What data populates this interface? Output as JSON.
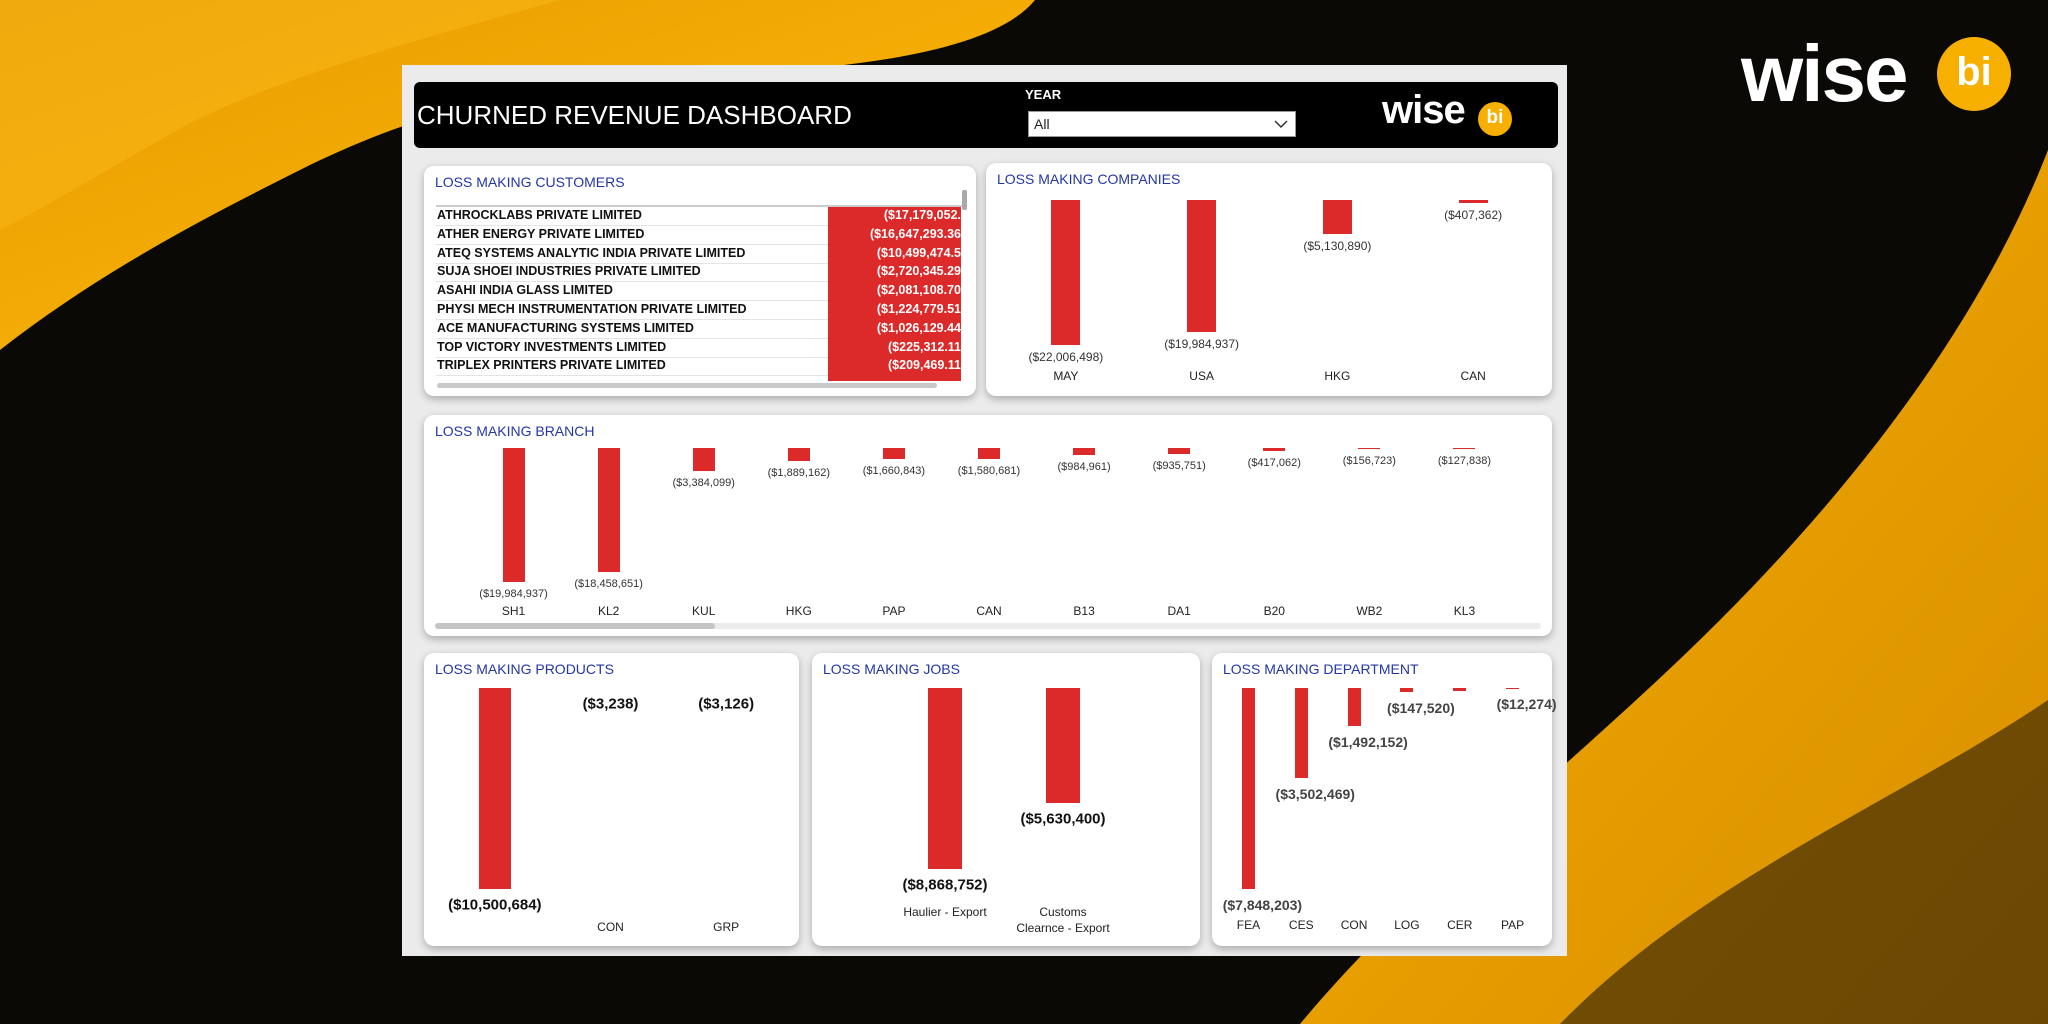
{
  "logo": {
    "brand": "wise",
    "badge": "bi"
  },
  "header": {
    "title": "CHURNED REVENUE DASHBOARD",
    "filter_label": "YEAR",
    "filter_value": "All"
  },
  "customers": {
    "title": "LOSS MAKING CUSTOMERS",
    "rows": [
      [
        "ATHROCKLABS PRIVATE LIMITED",
        "($17,179,052."
      ],
      [
        "ATHER ENERGY PRIVATE LIMITED",
        "($16,647,293.36"
      ],
      [
        "ATEQ SYSTEMS ANALYTIC INDIA PRIVATE LIMITED",
        "($10,499,474.5"
      ],
      [
        "SUJA SHOEI INDUSTRIES PRIVATE LIMITED",
        "($2,720,345.29"
      ],
      [
        "ASAHI INDIA GLASS LIMITED",
        "($2,081,108.70"
      ],
      [
        "PHYSI MECH INSTRUMENTATION PRIVATE LIMITED",
        "($1,224,779.51"
      ],
      [
        "ACE MANUFACTURING SYSTEMS LIMITED",
        "($1,026,129.44"
      ],
      [
        "TOP VICTORY INVESTMENTS LIMITED",
        "($225,312.11"
      ],
      [
        "TRIPLEX PRINTERS PRIVATE LIMITED",
        "($209,469.11"
      ]
    ]
  },
  "chart_data": [
    {
      "type": "bar",
      "title": "LOSS MAKING COMPANIES",
      "color": "#dc2a2a",
      "categories": [
        "MAY",
        "USA",
        "HKG",
        "CAN"
      ],
      "values": [
        -22006498,
        -19984937,
        -5130890,
        -407362
      ],
      "value_labels": [
        "($22,006,498)",
        "($19,984,937)",
        "($5,130,890)",
        "($407,362)"
      ],
      "ylim": [
        -24000000,
        0
      ]
    },
    {
      "type": "bar",
      "title": "LOSS MAKING BRANCH",
      "color": "#dc2a2a",
      "categories": [
        "SH1",
        "KL2",
        "KUL",
        "HKG",
        "PAP",
        "CAN",
        "B13",
        "DA1",
        "B20",
        "WB2",
        "KL3"
      ],
      "values": [
        -19984937,
        -18458651,
        -3384099,
        -1889162,
        -1660843,
        -1580681,
        -984961,
        -935751,
        -417062,
        -156723,
        -127838
      ],
      "value_labels": [
        "($19,984,937)",
        "($18,458,651)",
        "($3,384,099)",
        "($1,889,162)",
        "($1,660,843)",
        "($1,580,681)",
        "($984,961)",
        "($935,751)",
        "($417,062)",
        "($156,723)",
        "($127,838)"
      ],
      "ylim": [
        -21000000,
        0
      ]
    },
    {
      "type": "bar",
      "title": "LOSS MAKING PRODUCTS",
      "color": "#dc2a2a",
      "categories": [
        null,
        "CON",
        "GRP"
      ],
      "values": [
        -10500684,
        -3238,
        -3126
      ],
      "value_labels": [
        "($10,500,684)",
        "($3,238)",
        "($3,126)"
      ],
      "ylim": [
        -11000000,
        0
      ]
    },
    {
      "type": "bar",
      "title": "LOSS MAKING JOBS",
      "color": "#dc2a2a",
      "categories": [
        "Haulier - Export",
        "Customs\nClearnce - Export"
      ],
      "values": [
        -8868752,
        -5630400
      ],
      "value_labels": [
        "($8,868,752)",
        "($5,630,400)"
      ],
      "ylim": [
        -9500000,
        0
      ]
    },
    {
      "type": "bar",
      "title": "LOSS MAKING DEPARTMENT",
      "color": "#dc2a2a",
      "categories": [
        "FEA",
        "CES",
        "CON",
        "LOG",
        "CER",
        "PAP"
      ],
      "values": [
        -7848203,
        -3502469,
        -1492152,
        -147520,
        -100000,
        -12274
      ],
      "value_labels": [
        "($7,848,203)",
        "($3,502,469)",
        "($1,492,152)",
        "($147,520)",
        null,
        "($12,274)"
      ],
      "ylim": [
        -8200000,
        0
      ]
    }
  ]
}
